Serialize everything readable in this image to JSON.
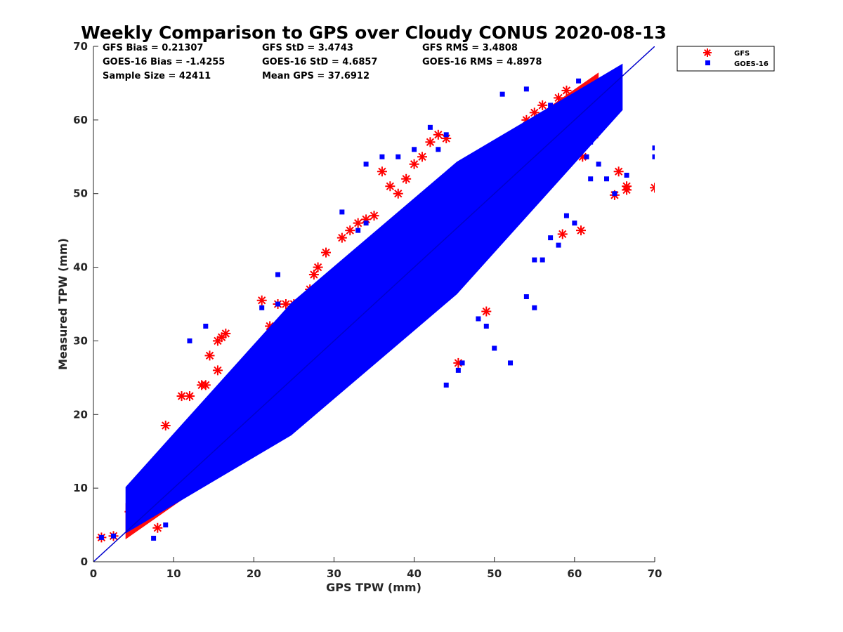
{
  "chart_data": {
    "type": "scatter",
    "title": "Weekly Comparison to GPS over Cloudy CONUS 2020-08-13",
    "xlabel": "GPS TPW (mm)",
    "ylabel": "Measured TPW (mm)",
    "xlim": [
      0,
      70
    ],
    "ylim": [
      0,
      70
    ],
    "x_ticks": [
      "0",
      "10",
      "20",
      "30",
      "40",
      "50",
      "60",
      "70"
    ],
    "y_ticks": [
      "0",
      "10",
      "20",
      "30",
      "40",
      "50",
      "60",
      "70"
    ],
    "grid": false,
    "legend_position": "top-right, outside plot area",
    "reference_line": {
      "name": "1:1 line",
      "x": [
        0,
        70
      ],
      "y": [
        0,
        70
      ],
      "color": "#0000cc"
    },
    "stats": [
      [
        "GFS Bias = 0.21307",
        "GFS StD = 3.4743",
        "GFS RMS = 3.4808"
      ],
      [
        "GOES-16 Bias = -1.4255",
        "GOES-16 StD = 4.6857",
        "GOES-16 RMS = 4.8978"
      ],
      [
        "Sample Size = 42411",
        "Mean GPS = 37.6912",
        ""
      ]
    ],
    "series": [
      {
        "name": "GFS",
        "marker": "asterisk",
        "color": "#ff0000",
        "band": {
          "x_start": 4,
          "x_end": 63,
          "y_offset_start": 1.5,
          "y_offset_end": 1.0,
          "half_width": 7
        },
        "points": [
          [
            1,
            3.3
          ],
          [
            2.5,
            3.5
          ],
          [
            4.5,
            6.8
          ],
          [
            5.5,
            8
          ],
          [
            6,
            11
          ],
          [
            7,
            12
          ],
          [
            8,
            4.6
          ],
          [
            9,
            18.5
          ],
          [
            11,
            22.5
          ],
          [
            12,
            22.5
          ],
          [
            13.5,
            24
          ],
          [
            14,
            24
          ],
          [
            14.5,
            28
          ],
          [
            15.5,
            30
          ],
          [
            16,
            30.5
          ],
          [
            16.5,
            31
          ],
          [
            15.5,
            26
          ],
          [
            21,
            35.5
          ],
          [
            22,
            32
          ],
          [
            23,
            35
          ],
          [
            24,
            35
          ],
          [
            25,
            35
          ],
          [
            26,
            35.5
          ],
          [
            27,
            37
          ],
          [
            27.5,
            39
          ],
          [
            28,
            40
          ],
          [
            29,
            42
          ],
          [
            31,
            44
          ],
          [
            32,
            45
          ],
          [
            33,
            46
          ],
          [
            34,
            46.5
          ],
          [
            35,
            47
          ],
          [
            36,
            53
          ],
          [
            37,
            51
          ],
          [
            38,
            50
          ],
          [
            39,
            52
          ],
          [
            40,
            54
          ],
          [
            41,
            55
          ],
          [
            42,
            57
          ],
          [
            43,
            58
          ],
          [
            44,
            57.5
          ],
          [
            45.5,
            27
          ],
          [
            49,
            34
          ],
          [
            50,
            50
          ],
          [
            52,
            55
          ],
          [
            53,
            56
          ],
          [
            54,
            57
          ],
          [
            55,
            61
          ],
          [
            56,
            62
          ],
          [
            56.5,
            58
          ],
          [
            57,
            60
          ],
          [
            58,
            63
          ],
          [
            58.5,
            44.5
          ],
          [
            59,
            64
          ],
          [
            60,
            62
          ],
          [
            60.5,
            61
          ],
          [
            60.8,
            45
          ],
          [
            61,
            55
          ],
          [
            61.5,
            64
          ],
          [
            62,
            58
          ],
          [
            62.5,
            58
          ],
          [
            63,
            63
          ],
          [
            63.5,
            62
          ],
          [
            64,
            64
          ],
          [
            64,
            62
          ],
          [
            65,
            49.8
          ],
          [
            65.5,
            53
          ],
          [
            66.5,
            51
          ],
          [
            66.5,
            50.5
          ],
          [
            70,
            50.8
          ],
          [
            55,
            58
          ],
          [
            54,
            60
          ],
          [
            57,
            58
          ],
          [
            59.5,
            60
          ]
        ]
      },
      {
        "name": "GOES-16",
        "marker": "square",
        "color": "#0000ff",
        "band": {
          "x_start": 4,
          "x_end": 66,
          "y_offset_start": 3,
          "y_offset_end": -1.5,
          "half_width": 9
        },
        "points": [
          [
            1,
            3.3
          ],
          [
            2.5,
            3.5
          ],
          [
            7.5,
            3.2
          ],
          [
            9,
            5
          ],
          [
            12,
            30
          ],
          [
            14,
            32
          ],
          [
            21,
            34.5
          ],
          [
            23,
            39
          ],
          [
            23,
            35
          ],
          [
            31,
            47.5
          ],
          [
            33,
            45
          ],
          [
            34,
            46
          ],
          [
            34,
            54
          ],
          [
            36,
            55
          ],
          [
            38,
            55
          ],
          [
            40,
            56
          ],
          [
            42,
            59
          ],
          [
            43,
            56
          ],
          [
            44,
            58
          ],
          [
            44,
            24
          ],
          [
            45.5,
            26
          ],
          [
            46,
            27
          ],
          [
            48,
            33
          ],
          [
            49,
            32
          ],
          [
            50,
            29
          ],
          [
            52,
            27
          ],
          [
            54,
            36
          ],
          [
            55,
            34.5
          ],
          [
            55,
            41
          ],
          [
            56,
            41
          ],
          [
            57,
            44
          ],
          [
            58,
            43
          ],
          [
            59,
            47
          ],
          [
            60,
            46
          ],
          [
            60.5,
            65.3
          ],
          [
            61.5,
            55
          ],
          [
            62,
            52
          ],
          [
            63,
            54
          ],
          [
            64,
            52
          ],
          [
            65,
            50
          ],
          [
            66.5,
            52.5
          ],
          [
            70,
            55
          ],
          [
            70,
            56.2
          ],
          [
            54,
            64.2
          ],
          [
            51,
            63.5
          ],
          [
            55,
            60
          ],
          [
            57,
            62
          ],
          [
            59,
            61
          ],
          [
            62,
            57
          ]
        ]
      }
    ]
  }
}
